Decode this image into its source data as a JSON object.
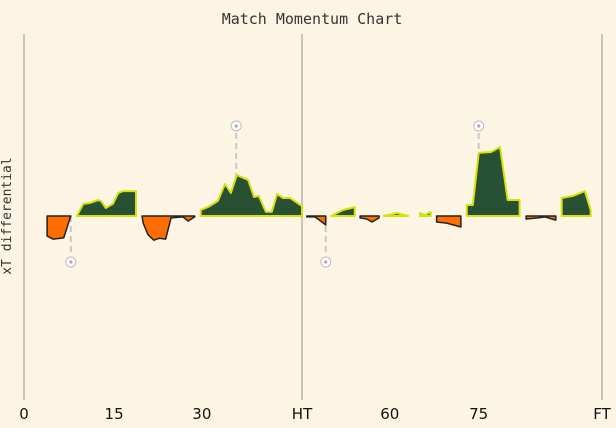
{
  "chart_data": {
    "type": "area",
    "title": "Match Momentum Chart",
    "xlabel": "",
    "ylabel": "xT differential",
    "xlim": [
      0,
      97.5
    ],
    "ylim": [
      -1,
      1
    ],
    "grid": false,
    "x_ticks": [
      {
        "value": 0,
        "label": "0"
      },
      {
        "value": 15.2,
        "label": "15"
      },
      {
        "value": 30,
        "label": "30"
      },
      {
        "value": 46.9,
        "label": "HT"
      },
      {
        "value": 61.7,
        "label": "60"
      },
      {
        "value": 76.7,
        "label": "75"
      },
      {
        "value": 97.5,
        "label": "FT"
      }
    ],
    "period_lines": [
      0,
      46.9,
      97.5
    ],
    "colors": {
      "home": "#285033",
      "home_edge": "#d7e20a",
      "away": "#ff6c00",
      "away_edge": "#222222",
      "background": "#fdf5e4",
      "divider": "#c9c4b8",
      "goal_line": "#c8c8c8"
    },
    "segments": [
      {
        "team": "away",
        "points": [
          [
            3.9,
            0
          ],
          [
            3.9,
            -0.108
          ],
          [
            4.9,
            -0.124
          ],
          [
            6.7,
            -0.118
          ],
          [
            7.9,
            0
          ]
        ]
      },
      {
        "team": "home",
        "points": [
          [
            8.9,
            0
          ],
          [
            10,
            0.065
          ],
          [
            11.1,
            0.07
          ],
          [
            12.5,
            0.086
          ],
          [
            13,
            0.08
          ],
          [
            13.8,
            0.043
          ],
          [
            15,
            0.065
          ],
          [
            15.9,
            0.124
          ],
          [
            16.7,
            0.134
          ],
          [
            17.9,
            0.134
          ],
          [
            18.9,
            0.134
          ],
          [
            18.9,
            0
          ]
        ]
      },
      {
        "team": "away",
        "points": [
          [
            19.9,
            0
          ],
          [
            20.1,
            -0.038
          ],
          [
            20.9,
            -0.1
          ],
          [
            21.9,
            -0.13
          ],
          [
            22.8,
            -0.12
          ],
          [
            23.9,
            -0.124
          ],
          [
            24.8,
            -0.01
          ],
          [
            26.8,
            -0.005
          ],
          [
            27.7,
            -0.027
          ],
          [
            28.8,
            -0.005
          ],
          [
            28.8,
            0
          ]
        ]
      },
      {
        "team": "home",
        "points": [
          [
            29.8,
            0
          ],
          [
            29.8,
            0.032
          ],
          [
            31,
            0.048
          ],
          [
            32.7,
            0.081
          ],
          [
            33.9,
            0.172
          ],
          [
            34.9,
            0.124
          ],
          [
            35.9,
            0.22
          ],
          [
            37.8,
            0.194
          ],
          [
            38.8,
            0.102
          ],
          [
            39.6,
            0.108
          ],
          [
            40.8,
            0.022
          ],
          [
            41.8,
            0.022
          ],
          [
            42.7,
            0.118
          ],
          [
            43.7,
            0.097
          ],
          [
            44.9,
            0.097
          ],
          [
            46.9,
            0.054
          ],
          [
            46.9,
            0
          ]
        ]
      },
      {
        "team": "away",
        "points": [
          [
            47.7,
            0
          ],
          [
            47.7,
            -0.005
          ],
          [
            49.1,
            -0.005
          ],
          [
            50.9,
            -0.048
          ],
          [
            50.9,
            0
          ]
        ]
      },
      {
        "team": "home",
        "points": [
          [
            51.8,
            0
          ],
          [
            53.8,
            0.032
          ],
          [
            55.8,
            0.048
          ],
          [
            55.8,
            0
          ]
        ]
      },
      {
        "team": "away",
        "points": [
          [
            56.7,
            0
          ],
          [
            56.7,
            -0.01
          ],
          [
            57.8,
            -0.016
          ],
          [
            58.7,
            -0.032
          ],
          [
            59.9,
            -0.01
          ],
          [
            59.9,
            0
          ]
        ]
      },
      {
        "team": "home",
        "points": [
          [
            60.7,
            0
          ],
          [
            62.9,
            0.016
          ],
          [
            64.8,
            0
          ]
        ]
      },
      {
        "team": "home",
        "points": [
          [
            66.8,
            0
          ],
          [
            66.8,
            0.016
          ],
          [
            67.6,
            0.005
          ],
          [
            68.6,
            0.022
          ],
          [
            68.6,
            0
          ]
        ]
      },
      {
        "team": "away",
        "points": [
          [
            69.6,
            0
          ],
          [
            69.6,
            -0.032
          ],
          [
            71.3,
            -0.038
          ],
          [
            73.7,
            -0.059
          ],
          [
            73.7,
            0
          ]
        ]
      },
      {
        "team": "home",
        "points": [
          [
            74.7,
            0
          ],
          [
            74.7,
            0.059
          ],
          [
            75.7,
            0.059
          ],
          [
            76.7,
            0.339
          ],
          [
            78.8,
            0.344
          ],
          [
            80.3,
            0.371
          ],
          [
            81.6,
            0.086
          ],
          [
            83.6,
            0.086
          ],
          [
            83.6,
            0
          ]
        ]
      },
      {
        "team": "away",
        "points": [
          [
            84.7,
            0
          ],
          [
            84.7,
            -0.016
          ],
          [
            86.7,
            -0.01
          ],
          [
            87.9,
            -0.005
          ],
          [
            89.7,
            -0.022
          ],
          [
            89.7,
            0
          ]
        ]
      },
      {
        "team": "home",
        "points": [
          [
            90.7,
            0
          ],
          [
            90.7,
            0.097
          ],
          [
            92.6,
            0.108
          ],
          [
            94.6,
            0.134
          ],
          [
            95.6,
            0.032
          ],
          [
            95.6,
            0
          ]
        ]
      }
    ],
    "goals": [
      {
        "team": "away",
        "minute": 7.9
      },
      {
        "team": "home",
        "minute": 35.8
      },
      {
        "team": "away",
        "minute": 50.9
      },
      {
        "team": "home",
        "minute": 76.7
      }
    ]
  }
}
